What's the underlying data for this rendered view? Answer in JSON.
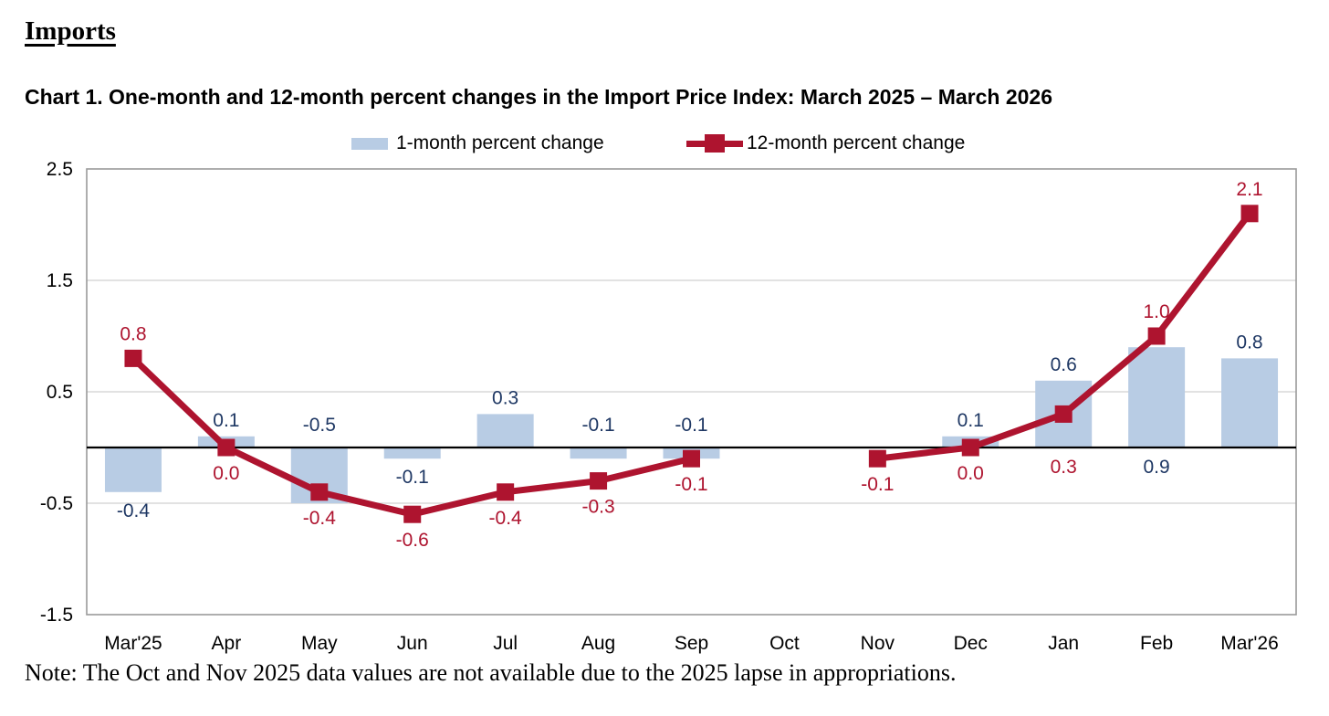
{
  "page": {
    "heading": "Imports",
    "note": "Note: The Oct and Nov 2025 data values are not available due to the 2025 lapse in appropriations."
  },
  "chart_data": {
    "type": "bar",
    "subtype": "combo bar+line",
    "title": "Chart 1. One-month and 12-month percent changes in the Import Price Index: March 2025 – March 2026",
    "categories": [
      "Mar'25",
      "Apr",
      "May",
      "Jun",
      "Jul",
      "Aug",
      "Sep",
      "Oct",
      "Nov",
      "Dec",
      "Jan",
      "Feb",
      "Mar'26"
    ],
    "series": [
      {
        "name": "1-month percent change",
        "type": "bar",
        "color": "#b8cce4",
        "label_color": "#1f3864",
        "values": [
          -0.4,
          0.1,
          -0.5,
          -0.1,
          0.3,
          -0.1,
          -0.1,
          null,
          null,
          0.1,
          0.6,
          0.9,
          0.8
        ],
        "label_placement": [
          "below",
          "above",
          "above-axis",
          "below",
          "above",
          "above-axis",
          "above-axis",
          null,
          null,
          "above",
          "above",
          "below-axis",
          "above"
        ]
      },
      {
        "name": "12-month percent change",
        "type": "line",
        "color": "#ae142f",
        "label_color": "#ae142f",
        "values": [
          0.8,
          0.0,
          -0.4,
          -0.6,
          -0.4,
          -0.3,
          -0.1,
          null,
          -0.1,
          0.0,
          0.3,
          1.0,
          2.1
        ],
        "label_placement": [
          "above",
          "below",
          "below",
          "below",
          "below",
          "below",
          "below",
          null,
          "below",
          "below",
          "below-axis",
          "above",
          "above"
        ]
      }
    ],
    "ylim": [
      -1.5,
      2.5
    ],
    "yticks": [
      "2.5",
      "1.5",
      "0.5",
      "-0.5",
      "-1.5"
    ],
    "grid": "horizontal-light",
    "legend_position": "top-center",
    "missing_categories": [
      "Oct",
      "Nov"
    ],
    "colors": {
      "bar_fill": "#b8cce4",
      "bar_label": "#1f3864",
      "line": "#ae142f",
      "gridline": "#d9d9d9",
      "plot_border": "#9a9a9a",
      "zero_line": "#000000",
      "axis_text": "#000000"
    }
  }
}
